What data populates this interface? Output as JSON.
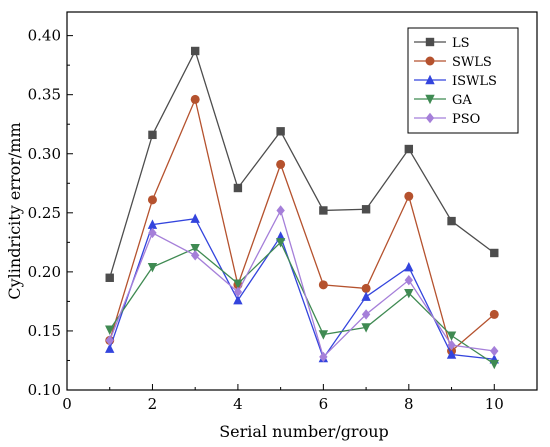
{
  "chart_data": {
    "type": "line",
    "xlabel": "Serial number/group",
    "ylabel": "Cylindricity error/mm",
    "xlim": [
      0,
      11
    ],
    "ylim": [
      0.1,
      0.42
    ],
    "xticks": [
      0,
      2,
      4,
      6,
      8,
      10
    ],
    "yticks": [
      0.1,
      0.15,
      0.2,
      0.25,
      0.3,
      0.35,
      0.4
    ],
    "ytick_labels": [
      "0.10",
      "0.15",
      "0.20",
      "0.25",
      "0.30",
      "0.35",
      "0.40"
    ],
    "x": [
      1,
      2,
      3,
      4,
      5,
      6,
      7,
      8,
      9,
      10
    ],
    "legend_position": "top-right",
    "grid": false,
    "series": [
      {
        "name": "LS",
        "color": "#4d4d4d",
        "marker": "square",
        "values": [
          0.195,
          0.316,
          0.387,
          0.271,
          0.319,
          0.252,
          0.253,
          0.304,
          0.243,
          0.216
        ]
      },
      {
        "name": "SWLS",
        "color": "#b5522e",
        "marker": "circle",
        "values": [
          0.142,
          0.261,
          0.346,
          0.189,
          0.291,
          0.189,
          0.186,
          0.264,
          0.133,
          0.164
        ]
      },
      {
        "name": "ISWLS",
        "color": "#3344dd",
        "marker": "triangle-up",
        "values": [
          0.135,
          0.24,
          0.245,
          0.176,
          0.23,
          0.127,
          0.179,
          0.204,
          0.13,
          0.126
        ]
      },
      {
        "name": "GA",
        "color": "#3f8a52",
        "marker": "triangle-down",
        "values": [
          0.151,
          0.204,
          0.22,
          0.19,
          0.225,
          0.147,
          0.153,
          0.182,
          0.146,
          0.122
        ]
      },
      {
        "name": "PSO",
        "color": "#a57fd9",
        "marker": "diamond",
        "values": [
          0.142,
          0.233,
          0.214,
          0.183,
          0.252,
          0.128,
          0.164,
          0.193,
          0.138,
          0.133
        ]
      }
    ]
  }
}
